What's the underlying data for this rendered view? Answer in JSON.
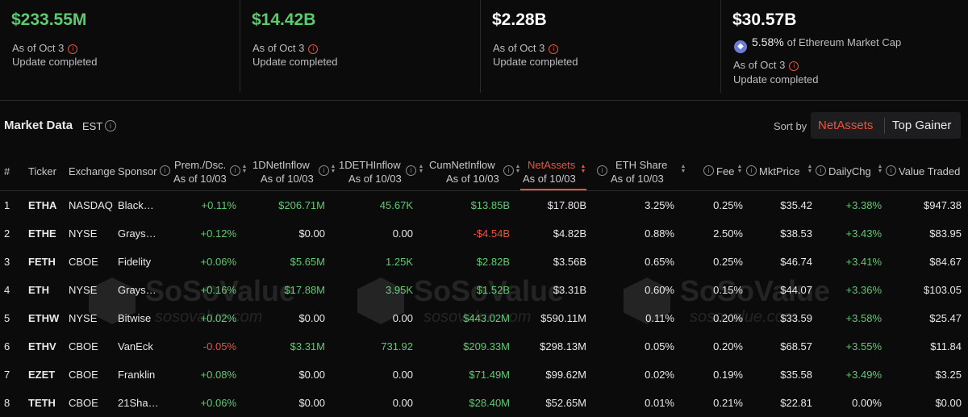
{
  "stats": [
    {
      "value": "$233.55M",
      "as_of": "As of Oct 3",
      "update": "Update completed",
      "color": "#5ccb6f"
    },
    {
      "value": "$14.42B",
      "as_of": "As of Oct 3",
      "update": "Update completed",
      "color": "#5ccb6f"
    },
    {
      "value": "$2.28B",
      "as_of": "As of Oct 3",
      "update": "Update completed",
      "color": "#ffffff"
    },
    {
      "value": "$30.57B",
      "percent": "5.58%",
      "percent_label": "of Ethereum Market Cap",
      "as_of": "As of Oct 3",
      "update": "Update completed",
      "color": "#ffffff"
    }
  ],
  "market": {
    "title": "Market Data",
    "timezone": "EST",
    "sort_by_label": "Sort by",
    "sort_options": [
      "NetAssets",
      "Top Gainer"
    ],
    "active_sort": "NetAssets"
  },
  "columns": {
    "num": "#",
    "ticker": "Ticker",
    "exchange": "Exchange",
    "sponsor": "Sponsor",
    "prem": "Prem./Dsc.",
    "net_inflow": "1DNetInflow",
    "eth_inflow": "1DETHInflow",
    "cum_inflow": "CumNetInflow",
    "net_assets": "NetAssets",
    "eth_share": "ETH Share",
    "fee": "Fee",
    "mkt_price": "MktPrice",
    "daily_chg": "DailyChg",
    "value_traded": "Value Traded",
    "as_of": "As of 10/03"
  },
  "rows": [
    {
      "num": "1",
      "ticker": "ETHA",
      "exchange": "NASDAQ",
      "sponsor": "Black…",
      "prem": "+0.11%",
      "net_inflow": "$206.71M",
      "eth_inflow": "45.67K",
      "cum_inflow": "$13.85B",
      "net_assets": "$17.80B",
      "eth_share": "3.25%",
      "fee": "0.25%",
      "mkt_price": "$35.42",
      "daily_chg": "+3.38%",
      "value_traded": "$947.38"
    },
    {
      "num": "2",
      "ticker": "ETHE",
      "exchange": "NYSE",
      "sponsor": "Grays…",
      "prem": "+0.12%",
      "net_inflow": "$0.00",
      "eth_inflow": "0.00",
      "cum_inflow": "-$4.54B",
      "net_assets": "$4.82B",
      "eth_share": "0.88%",
      "fee": "2.50%",
      "mkt_price": "$38.53",
      "daily_chg": "+3.43%",
      "value_traded": "$83.95"
    },
    {
      "num": "3",
      "ticker": "FETH",
      "exchange": "CBOE",
      "sponsor": "Fidelity",
      "prem": "+0.06%",
      "net_inflow": "$5.65M",
      "eth_inflow": "1.25K",
      "cum_inflow": "$2.82B",
      "net_assets": "$3.56B",
      "eth_share": "0.65%",
      "fee": "0.25%",
      "mkt_price": "$46.74",
      "daily_chg": "+3.41%",
      "value_traded": "$84.67"
    },
    {
      "num": "4",
      "ticker": "ETH",
      "exchange": "NYSE",
      "sponsor": "Grays…",
      "prem": "+0.16%",
      "net_inflow": "$17.88M",
      "eth_inflow": "3.95K",
      "cum_inflow": "$1.52B",
      "net_assets": "$3.31B",
      "eth_share": "0.60%",
      "fee": "0.15%",
      "mkt_price": "$44.07",
      "daily_chg": "+3.36%",
      "value_traded": "$103.05"
    },
    {
      "num": "5",
      "ticker": "ETHW",
      "exchange": "NYSE",
      "sponsor": "Bitwise",
      "prem": "+0.02%",
      "net_inflow": "$0.00",
      "eth_inflow": "0.00",
      "cum_inflow": "$443.02M",
      "net_assets": "$590.11M",
      "eth_share": "0.11%",
      "fee": "0.20%",
      "mkt_price": "$33.59",
      "daily_chg": "+3.58%",
      "value_traded": "$25.47"
    },
    {
      "num": "6",
      "ticker": "ETHV",
      "exchange": "CBOE",
      "sponsor": "VanEck",
      "prem": "-0.05%",
      "net_inflow": "$3.31M",
      "eth_inflow": "731.92",
      "cum_inflow": "$209.33M",
      "net_assets": "$298.13M",
      "eth_share": "0.05%",
      "fee": "0.20%",
      "mkt_price": "$68.57",
      "daily_chg": "+3.55%",
      "value_traded": "$11.84"
    },
    {
      "num": "7",
      "ticker": "EZET",
      "exchange": "CBOE",
      "sponsor": "Franklin",
      "prem": "+0.08%",
      "net_inflow": "$0.00",
      "eth_inflow": "0.00",
      "cum_inflow": "$71.49M",
      "net_assets": "$99.62M",
      "eth_share": "0.02%",
      "fee": "0.19%",
      "mkt_price": "$35.58",
      "daily_chg": "+3.49%",
      "value_traded": "$3.25"
    },
    {
      "num": "8",
      "ticker": "TETH",
      "exchange": "CBOE",
      "sponsor": "21Sha…",
      "prem": "+0.06%",
      "net_inflow": "$0.00",
      "eth_inflow": "0.00",
      "cum_inflow": "$28.40M",
      "net_assets": "$52.65M",
      "eth_share": "0.01%",
      "fee": "0.21%",
      "mkt_price": "$22.81",
      "daily_chg": "0.00%",
      "value_traded": "$0.00"
    }
  ],
  "watermark": {
    "name": "SoSoValue",
    "url": "sosovalue.com"
  }
}
